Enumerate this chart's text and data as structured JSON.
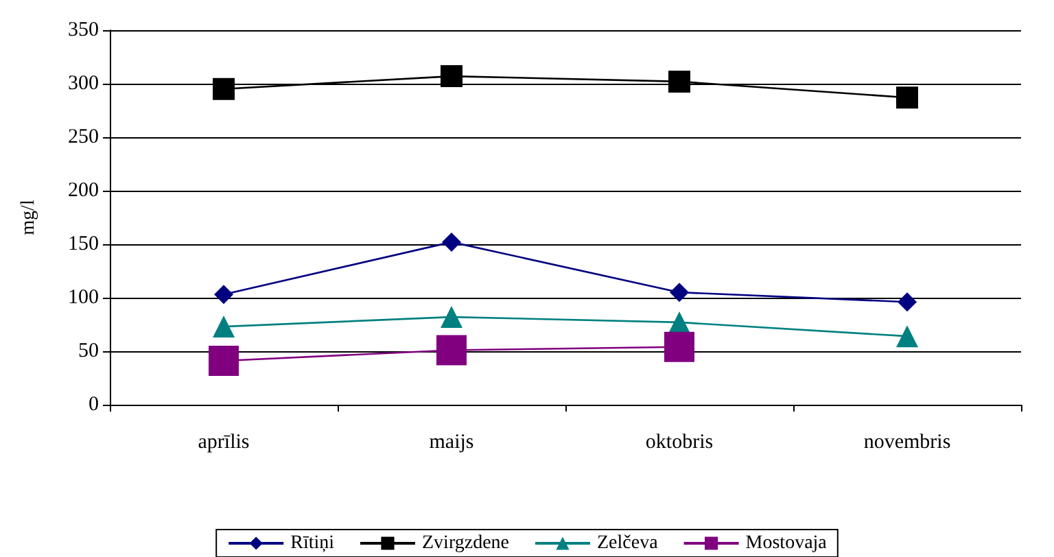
{
  "chart_data": {
    "type": "line",
    "ylabel": "mg/l",
    "categories": [
      "aprīlis",
      "maijs",
      "oktobris",
      "novembris"
    ],
    "series": [
      {
        "name": "Rītiņi",
        "color": "#000080",
        "marker": "diamond",
        "values": [
          103,
          152,
          105,
          96
        ]
      },
      {
        "name": "Zvirgzdene",
        "color": "#000000",
        "marker": "square",
        "values": [
          295,
          307,
          302,
          287
        ]
      },
      {
        "name": "Zelčeva",
        "color": "#008080",
        "marker": "triangle",
        "values": [
          73,
          82,
          77,
          64
        ]
      },
      {
        "name": "Mostovaja",
        "color": "#800080",
        "marker": "square",
        "values": [
          41,
          51,
          54,
          null
        ]
      }
    ],
    "ylim": [
      0,
      350
    ],
    "yticks": [
      0,
      50,
      100,
      150,
      200,
      250,
      300,
      350
    ],
    "grid": "y",
    "legend": "bottom"
  }
}
